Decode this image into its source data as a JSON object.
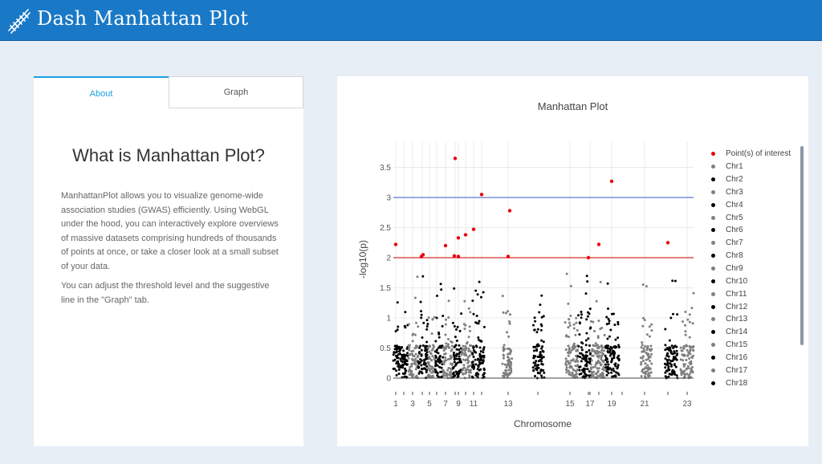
{
  "header": {
    "title": "Dash Manhattan Plot",
    "logo_icon": "dna-icon"
  },
  "tabs": [
    {
      "label": "About"
    },
    {
      "label": "Graph"
    }
  ],
  "about": {
    "heading": "What is Manhattan Plot?",
    "paragraph1": "ManhattanPlot allows you to visualize genome-wide association studies (GWAS) efficiently. Using WebGL under the hood, you can interactively explore overviews of massive datasets comprising hundreds of thousands of points at once, or take a closer look at a small subset of your data.",
    "paragraph2": "You can adjust the threshold level and the suggestive line in the \"Graph\" tab."
  },
  "colors": {
    "header": "#1a79c7",
    "accent": "#1a9fe0",
    "highlight": "#e8000b",
    "genomewide_line": "#7a8fd8",
    "suggestive_line": "#e05050",
    "dark_points": "#000000",
    "light_points": "#808080"
  },
  "chart_data": {
    "type": "scatter",
    "title": "Manhattan Plot",
    "xlabel": "Chromosome",
    "ylabel": "-log10(p)",
    "ylim": [
      0,
      3.85
    ],
    "yticks": [
      "0",
      "0.5",
      "1",
      "1.5",
      "2",
      "2.5",
      "3",
      "3.5"
    ],
    "xtick_labels": [
      "1",
      "3",
      "5",
      "7",
      "9",
      "11",
      "13",
      "15",
      "17",
      "19",
      "21",
      "23"
    ],
    "genomewide_line": 3,
    "suggestive_line": 2,
    "points_of_interest": [
      {
        "chr": 1,
        "y": 2.22
      },
      {
        "chr": 4,
        "y": 2.02
      },
      {
        "chr": 4,
        "y": 2.05
      },
      {
        "chr": 7,
        "y": 2.2
      },
      {
        "chr": 8,
        "y": 2.03
      },
      {
        "chr": 8,
        "y": 3.65
      },
      {
        "chr": 9,
        "y": 2.02
      },
      {
        "chr": 9,
        "y": 2.33
      },
      {
        "chr": 10,
        "y": 2.38
      },
      {
        "chr": 11,
        "y": 2.47
      },
      {
        "chr": 12,
        "y": 3.05
      },
      {
        "chr": 13,
        "y": 2.02
      },
      {
        "chr": 13,
        "y": 2.78
      },
      {
        "chr": 16,
        "y": 2.0
      },
      {
        "chr": 18,
        "y": 2.22
      },
      {
        "chr": 19,
        "y": 3.27
      },
      {
        "chr": 22,
        "y": 2.25
      }
    ],
    "legend": [
      "Point(s) of interest",
      "Chr1",
      "Chr2",
      "Chr3",
      "Chr4",
      "Chr5",
      "Chr6",
      "Chr7",
      "Chr8",
      "Chr9",
      "Chr10",
      "Chr11",
      "Chr12",
      "Chr13",
      "Chr14",
      "Chr15",
      "Chr16",
      "Chr17",
      "Chr18"
    ],
    "grid": true,
    "legend_position": "right"
  }
}
